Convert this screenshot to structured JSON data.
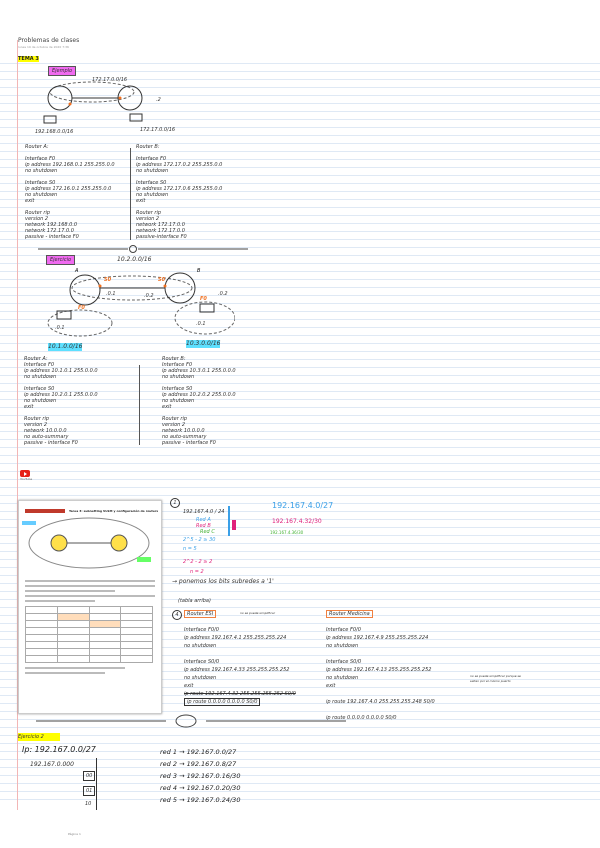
{
  "page": {
    "title": "Problemas de clases",
    "subtitle": "lunes 19 de octubre de 2020  7:36"
  },
  "section_heading": "TEMA 3",
  "exercise1": {
    "label": "Ejemplo",
    "diagram": {
      "net_top": "172.17.0.0/16",
      "net_left": "192.168.0.0/16",
      "net_right": "172.17.0.0/16",
      "ip_right": ".2"
    },
    "router_a": {
      "title": "Router A:",
      "lines": [
        "Interface F0",
        "ip address 192.168.0.1 255.255.0.0",
        "no shutdown",
        "",
        "Interface S0",
        "ip address 172.16.0.1 255.255.0.0",
        "no shutdown",
        "exit",
        "",
        "Router rip",
        "version 2",
        "network 192.168.0.0",
        "network 172.17.0.0",
        "passive - interface F0"
      ]
    },
    "router_b": {
      "title": "Router B:",
      "lines": [
        "Interface F0",
        "ip address 172.17.0.2 255.255.0.0",
        "no shutdown",
        "",
        "Interface S0",
        "ip address 172.17.0.6 255.255.0.0",
        "no shutdown",
        "exit",
        "",
        "Router rip",
        "version 2",
        "network 172.17.0.0",
        "network 172.17.0.0",
        "passive-interface F0"
      ]
    }
  },
  "exercise2": {
    "label": "Ejercicio",
    "diagram": {
      "net_top": "10.2.0.0/16",
      "router_a": "A",
      "router_b": "B",
      "s0_a": "S0",
      "s0_b": "S0",
      "f0_a": "F0",
      "f0_b": "F0",
      "ip_a": ".0.1",
      "ip_b": ".0.2",
      "pc_a": ".0.1",
      "pc_b": ".0.1",
      "pc_b_ip": ".0.2",
      "net_left": "10.1.0.0/16",
      "net_right": "10.3.0.0/16"
    },
    "router_a": {
      "title": "Router A:",
      "lines": [
        "Interface F0",
        "ip address 10.1.0.1 255.0.0.0",
        "no shutdown",
        "",
        "Interface S0",
        "ip address 10.2.0.1 255.0.0.0",
        "no shutdown",
        "exit",
        "",
        "Router rip",
        "version 2",
        "network 10.0.0.0",
        "no auto-summary",
        "passive - interface F0"
      ]
    },
    "router_b": {
      "title": "Router B:",
      "lines": [
        "Interface F0",
        "ip address 10.3.0.1 255.0.0.0",
        "no shutdown",
        "",
        "Interface S0",
        "ip address 10.2.0.2 255.0.0.0",
        "no shutdown",
        "exit",
        "",
        "Router rip",
        "version 2",
        "network 10.0.0.0",
        "no auto-summary",
        "passive - interface F0"
      ]
    }
  },
  "youtube": {
    "label": "YouTube",
    "icon": "youtube-icon"
  },
  "document": {
    "title": "Tarea 3: subnetting VLSM y configuración de routers"
  },
  "exercise3": {
    "step1_label": "1",
    "calc": [
      "192.167.4.0 / 24",
      "Red A",
      "Red B",
      "Red C",
      "2^5 - 2 ≥ 30",
      "n = 5",
      "2^2 - 2 ≥ 2",
      "n = 2"
    ],
    "results": {
      "blue": "192.167.4.0/27",
      "pink": "192.167.4.32/30",
      "green": "192.167.4.36/30"
    },
    "step2": "→ ponemos los bits subredes a '1'",
    "step3": "(tabla arriba)",
    "step4_label": "4",
    "router_esi": {
      "title": "Router ESI",
      "lines": [
        "Interface F0/0",
        "ip address 192.167.4.1 255.255.255.224",
        "no shutdown",
        "",
        "Interface S0/0",
        "ip address 192.167.4.33 255.255.255.252",
        "no shutdown",
        "exit",
        "ip route 192.167.4.32 255.255.255.252 S0/0",
        "ip route 0.0.0.0 0.0.0.0 S0/0"
      ],
      "note": "no se puede simplificar"
    },
    "router_medicina": {
      "title": "Router Medicina",
      "lines": [
        "Interface F0/0",
        "ip address 192.167.4.9 255.255.255.224",
        "no shutdown",
        "",
        "Interface S0/0",
        "ip address 192.167.4.13 255.255.255.252",
        "no shutdown",
        "exit",
        "",
        "ip route 192.167.4.0 255.255.255.248 S0/0",
        "",
        "ip route 0.0.0.0 0.0.0.0 S0/0"
      ],
      "note": "no se puede simplificar porque se saltan por el mismo puerto"
    }
  },
  "exercise4": {
    "label": "Ejercicio 2",
    "ip": "Ip: 192.167.0.0/27",
    "partial": "192.167.0.000",
    "boxes": [
      "00",
      "01",
      "10"
    ],
    "routes": [
      "red 1 → 192.167.0.0/27",
      "red 2 → 192.167.0.8/27",
      "red 3 → 192.167.0.16/30",
      "red 4 → 192.167.0.20/30",
      "red 5 → 192.167.0.24/30"
    ]
  },
  "footer": "Página 1",
  "colors": {
    "highlight_yellow": "#ffff00",
    "highlight_magenta": "#f06af0",
    "highlight_cyan": "#5ee0ff",
    "interface_orange": "#f07020",
    "margin_red": "#f2b6b6"
  }
}
